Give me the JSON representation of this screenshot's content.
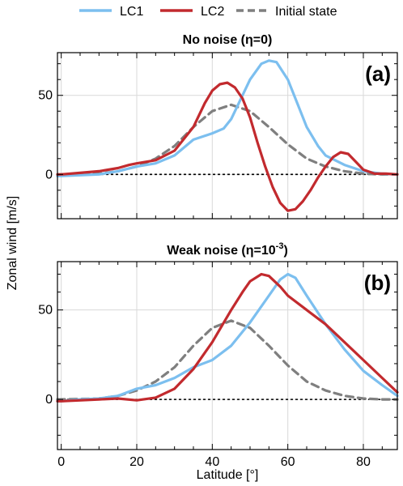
{
  "colors": {
    "LC1": "#7cbfef",
    "LC2": "#c22a2e",
    "initial": "#7f7f7f"
  },
  "legend": {
    "items": [
      "LC1",
      "LC2",
      "Initial state"
    ]
  },
  "chart_data": [
    {
      "type": "line",
      "title": "No noise (η=0)",
      "tag": "(a)",
      "xlabel": "Latitude [°]",
      "ylabel": "Zonal wind [m/s]",
      "xlim": [
        -1,
        89
      ],
      "ylim": [
        -28,
        77
      ],
      "xticks": [
        0,
        20,
        40,
        60,
        80
      ],
      "yticks": [
        0,
        50
      ],
      "grid": true,
      "zero_line": true,
      "series": [
        {
          "name": "LC1",
          "x": [
            -1,
            0,
            5,
            10,
            15,
            20,
            25,
            30,
            35,
            40,
            43,
            45,
            48,
            50,
            53,
            55,
            57,
            60,
            63,
            65,
            68,
            70,
            75,
            80,
            85,
            89
          ],
          "y": [
            -1,
            -1,
            -0.5,
            0,
            2,
            5,
            7,
            12,
            22,
            26,
            29,
            35,
            50,
            60,
            70,
            72,
            71,
            60,
            42,
            30,
            18,
            12,
            6,
            2,
            0.5,
            0
          ]
        },
        {
          "name": "LC2",
          "x": [
            -1,
            0,
            5,
            10,
            15,
            18,
            20,
            25,
            30,
            35,
            38,
            40,
            42,
            44,
            46,
            48,
            50,
            52,
            54,
            56,
            58,
            60,
            62,
            64,
            66,
            68,
            70,
            72,
            74,
            76,
            78,
            80,
            83,
            86,
            89
          ],
          "y": [
            0,
            0,
            1,
            2,
            4,
            6,
            7,
            9,
            15,
            30,
            45,
            53,
            57,
            58,
            55,
            48,
            36,
            20,
            5,
            -8,
            -18,
            -23,
            -22,
            -17,
            -10,
            -2,
            5,
            11,
            14,
            13,
            8,
            3,
            0.5,
            0.5,
            0
          ]
        },
        {
          "name": "Initial state",
          "x": [
            -1,
            0,
            10,
            15,
            20,
            25,
            30,
            35,
            40,
            45,
            50,
            55,
            60,
            65,
            70,
            75,
            80,
            85,
            89
          ],
          "y": [
            0,
            0,
            0.5,
            2,
            5,
            10,
            18,
            30,
            40,
            44,
            40,
            30,
            19,
            10,
            5,
            2,
            0.5,
            0,
            0
          ]
        }
      ]
    },
    {
      "type": "line",
      "title": "Weak noise (η=10",
      "title_sup": "-3",
      "title_end": ")",
      "tag": "(b)",
      "xlabel": "Latitude [°]",
      "ylabel": "Zonal wind [m/s]",
      "xlim": [
        -1,
        89
      ],
      "ylim": [
        -28,
        77
      ],
      "xticks": [
        0,
        20,
        40,
        60,
        80
      ],
      "yticks": [
        0,
        50
      ],
      "grid": true,
      "zero_line": true,
      "series": [
        {
          "name": "LC1",
          "x": [
            -1,
            0,
            5,
            10,
            15,
            20,
            25,
            30,
            35,
            40,
            45,
            50,
            55,
            58,
            60,
            62,
            65,
            70,
            75,
            80,
            85,
            89
          ],
          "y": [
            -1,
            -1,
            0,
            0.5,
            2,
            6,
            8,
            12,
            18,
            22,
            30,
            43,
            58,
            67,
            70,
            68,
            58,
            42,
            28,
            16,
            8,
            2
          ]
        },
        {
          "name": "LC2",
          "x": [
            -1,
            0,
            10,
            15,
            20,
            25,
            30,
            35,
            40,
            45,
            48,
            50,
            53,
            55,
            58,
            60,
            65,
            70,
            75,
            80,
            85,
            89
          ],
          "y": [
            -1,
            -1,
            0,
            0.5,
            -0.5,
            1,
            6,
            17,
            32,
            50,
            60,
            66,
            70,
            69,
            63,
            58,
            50,
            42,
            32,
            22,
            12,
            4
          ]
        },
        {
          "name": "Initial state",
          "x": [
            -1,
            0,
            10,
            15,
            20,
            25,
            30,
            35,
            40,
            45,
            50,
            55,
            60,
            65,
            70,
            75,
            80,
            85,
            89
          ],
          "y": [
            0,
            0,
            0.5,
            2,
            5,
            10,
            18,
            30,
            40,
            44,
            40,
            30,
            19,
            10,
            5,
            2,
            0.5,
            0,
            0
          ]
        }
      ]
    }
  ]
}
